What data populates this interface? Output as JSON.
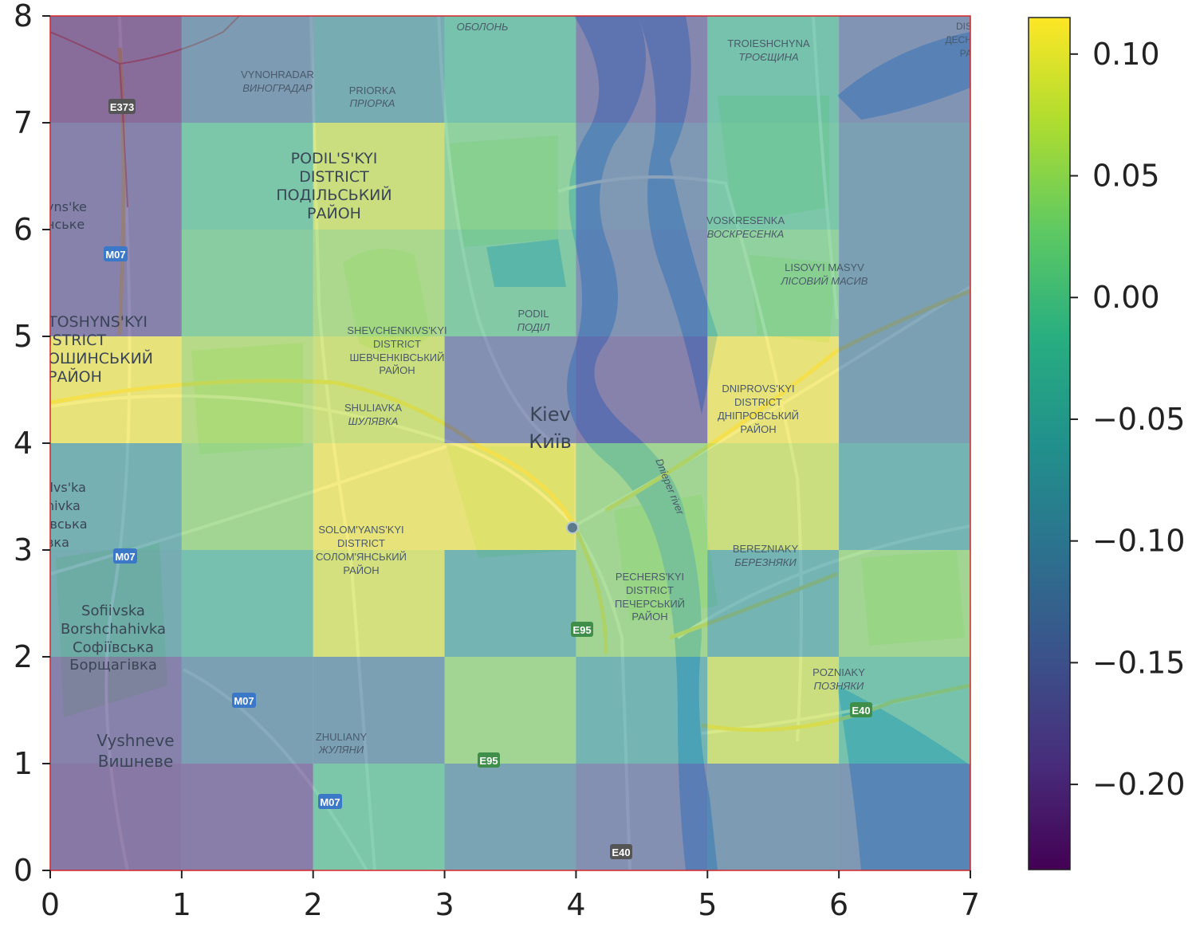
{
  "chart_data": {
    "type": "heatmap",
    "title": "",
    "xlabel": "",
    "ylabel": "",
    "xlim": [
      0,
      7
    ],
    "ylim": [
      0,
      8
    ],
    "x_ticks": [
      "0",
      "1",
      "2",
      "3",
      "4",
      "5",
      "6",
      "7"
    ],
    "y_ticks": [
      "0",
      "1",
      "2",
      "3",
      "4",
      "5",
      "6",
      "7",
      "8"
    ],
    "colorbar": {
      "colormap": "viridis",
      "range": [
        -0.235,
        0.115
      ],
      "ticks": [
        0.1,
        0.05,
        0.0,
        -0.05,
        -0.1,
        -0.15,
        -0.2
      ],
      "tick_labels": [
        "0.10",
        "0.05",
        "0.00",
        "−0.05",
        "−0.10",
        "−0.15",
        "−0.20"
      ]
    },
    "overlay_alpha": 0.55,
    "grid_rows_top_to_bottom": [
      [
        -0.22,
        -0.12,
        -0.08,
        -0.02,
        -0.17,
        -0.02,
        -0.14
      ],
      [
        -0.18,
        -0.01,
        0.08,
        0.02,
        -0.13,
        -0.01,
        -0.11
      ],
      [
        -0.18,
        0.01,
        0.05,
        0.0,
        -0.14,
        0.02,
        -0.11
      ],
      [
        0.11,
        0.06,
        0.08,
        -0.15,
        -0.18,
        0.11,
        -0.11
      ],
      [
        -0.07,
        0.04,
        0.11,
        0.11,
        0.04,
        0.08,
        -0.06
      ],
      [
        -0.08,
        -0.03,
        0.09,
        -0.06,
        0.04,
        -0.06,
        0.04
      ],
      [
        -0.18,
        -0.11,
        -0.11,
        0.04,
        -0.06,
        0.08,
        -0.02
      ],
      [
        -0.2,
        -0.19,
        -0.01,
        -0.1,
        -0.15,
        -0.12,
        -0.13
      ]
    ]
  },
  "map_labels": {
    "oboлон": "ОБОЛОНЬ",
    "vynohradar_en": "VYNOHRADAR",
    "vynohradar_uk": "ВИНОГРАДАР",
    "priorka_en": "PRIORKA",
    "priorka_uk": "ПРІОРКА",
    "troieshchyna_en": "TROIESHCHYNA",
    "troieshchyna_uk": "ТРОЄЩИНА",
    "podilskyi_1": "PODIL'S'KYI",
    "podilskyi_2": "DISTRICT",
    "podilskyi_3": "ПОДІЛЬСЬКИЙ",
    "podilskyi_4": "РАЙОН",
    "voskresenka_en": "VOSKRESENKA",
    "voskresenka_uk": "ВОСКРЕСЕНКА",
    "lisovyi_en": "LISOVYI MASYV",
    "lisovyi_uk": "ЛІСОВИЙ МАСИВ",
    "podil_en": "PODIL",
    "podil_uk": "ПОДІЛ",
    "shevchenkivskyi_1": "SHEVCHENKIVS'KYI",
    "shevchenkivskyi_2": "DISTRICT",
    "shevchenkivskyi_3": "ШЕВЧЕНКІВСЬКИЙ",
    "shevchenkivskyi_4": "РАЙОН",
    "sviatoshynskyi_1": "TOSHYNS'KYI",
    "sviatoshynskyi_2": "ISTRICT",
    "sviatoshynskyi_3": "ОШИНСЬКИЙ",
    "sviatoshynskyi_4": "РАЙОН",
    "shuliavka_en": "SHULIAVKA",
    "shuliavka_uk": "ШУЛЯВКА",
    "kiev_en": "Kiev",
    "kiev_uk": "Київ",
    "dniprovskyi_1": "DNIPROVS'KYI",
    "dniprovskyi_2": "DISTRICT",
    "dniprovskyi_3": "ДНІПРОВСЬКИЙ",
    "dniprovskyi_4": "РАЙОН",
    "dnieper_river": "Dnieper river",
    "solomianskyi_1": "SOLOM'YANS'KYI",
    "solomianskyi_2": "DISTRICT",
    "solomianskyi_3": "СОЛОМ'ЯНСЬКИЙ",
    "solomianskyi_4": "РАЙОН",
    "berezniaky_en": "BEREZNIAKY",
    "berezniaky_uk": "БЕРЕЗНЯКИ",
    "pecherskyi_1": "PECHERS'KYI",
    "pecherskyi_2": "DISTRICT",
    "pecherskyi_3": "ПЕЧЕРСЬКИЙ",
    "pecherskyi_4": "РАЙОН",
    "sofiivska_1": "Sofiivska",
    "sofiivska_2": "Borshchahivka",
    "sofiivska_3": "Софіївська",
    "sofiivska_4": "Борщагівка",
    "pozniaky_en": "POZNIAKY",
    "pozniaky_uk": "ПОЗНЯКИ",
    "zhuliany_en": "ZHULIANY",
    "zhuliany_uk": "ЖУЛЯНИ",
    "vyshneve_en": "Vyshneve",
    "vyshneve_uk": "Вишневе",
    "left_edge_1": "yns'ke",
    "left_edge_2": "нське",
    "left_edge_3": "ilvs'ka",
    "left_edge_4": "hivka",
    "left_edge_5": "івська",
    "left_edge_6": "вка",
    "top_right_1": "DIS",
    "top_right_2": "ДЕСН",
    "top_right_3": "РА"
  },
  "road_badges": {
    "e373": "E373",
    "m07_a": "M07",
    "m07_b": "M07",
    "m07_c": "M07",
    "m07_d": "M07",
    "e95_a": "E95",
    "e95_b": "E95",
    "e40_a": "E40",
    "e40_b": "E40"
  },
  "colors": {
    "map_base": "#d9dde3",
    "map_water": "#7fb4e8",
    "map_green": "#c3dec0",
    "map_road": "#f3f3f3",
    "map_highway": "#f3d77a",
    "frame": "#d62728",
    "badge_blue": "#3c78c8",
    "badge_green": "#3f8f4a",
    "badge_dark": "#555555"
  }
}
